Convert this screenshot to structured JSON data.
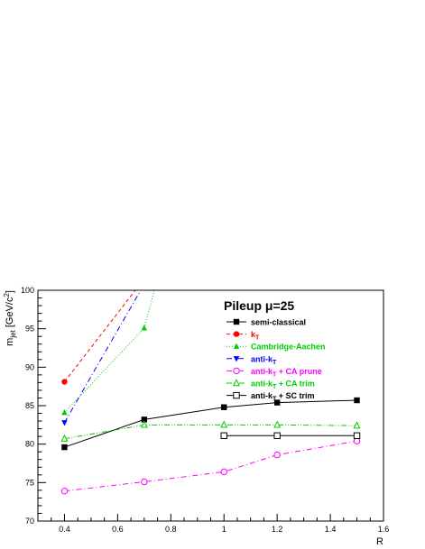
{
  "chart_data": {
    "type": "line",
    "title": "Pileup μ=25",
    "xlabel": "R",
    "ylabel": "m_jet [GeV/c^2]",
    "xlim": [
      0.3,
      1.6
    ],
    "ylim": [
      70,
      100
    ],
    "x_ticks": [
      "0.4",
      "0.6",
      "0.8",
      "1",
      "1.2",
      "1.4",
      "1.6"
    ],
    "y_ticks": [
      "70",
      "75",
      "80",
      "85",
      "90",
      "95",
      "100"
    ],
    "legend_position": "top-right",
    "grid": false,
    "series": [
      {
        "name": "semi-classical",
        "color": "#000000",
        "marker": "square-filled",
        "dash": "solid",
        "x": [
          0.4,
          0.7,
          1.0,
          1.2,
          1.5
        ],
        "y": [
          79.6,
          83.2,
          84.8,
          85.4,
          85.7
        ]
      },
      {
        "name": "k",
        "sub": "T",
        "color": "#ff0000",
        "marker": "circle-filled",
        "dash": "dashed",
        "x": [
          0.4,
          0.7
        ],
        "y": [
          88.1,
          101.5
        ]
      },
      {
        "name": "Cambridge-Aachen",
        "color": "#00cc00",
        "marker": "triangle-filled",
        "dash": "dotted",
        "x": [
          0.4,
          0.7,
          0.8
        ],
        "y": [
          84.1,
          95.1,
          108.0
        ]
      },
      {
        "name": "anti-k",
        "sub": "T",
        "color": "#0000ff",
        "marker": "triangle-down-filled",
        "dash": "dashdot",
        "x": [
          0.4,
          0.7
        ],
        "y": [
          82.8,
          100.8
        ]
      },
      {
        "name": "anti-k",
        "sub": "T",
        "suffix": " + CA prune",
        "color": "#ff00ff",
        "marker": "circle-open",
        "dash": "dashdot",
        "x": [
          0.4,
          0.7,
          1.0,
          1.2,
          1.5
        ],
        "y": [
          73.9,
          75.1,
          76.4,
          78.6,
          80.4
        ]
      },
      {
        "name": "anti-k",
        "sub": "T",
        "suffix": " + CA trim",
        "color": "#00cc00",
        "marker": "triangle-open",
        "dash": "dashdotdot",
        "x": [
          0.4,
          0.7,
          1.0,
          1.2,
          1.5
        ],
        "y": [
          80.7,
          82.5,
          82.5,
          82.5,
          82.4
        ]
      },
      {
        "name": "anti-k",
        "sub": "T",
        "suffix": " + SC trim",
        "color": "#000000",
        "marker": "square-open",
        "dash": "solid",
        "x": [
          1.0,
          1.2,
          1.5
        ],
        "y": [
          81.1,
          81.1,
          81.1
        ]
      }
    ]
  }
}
